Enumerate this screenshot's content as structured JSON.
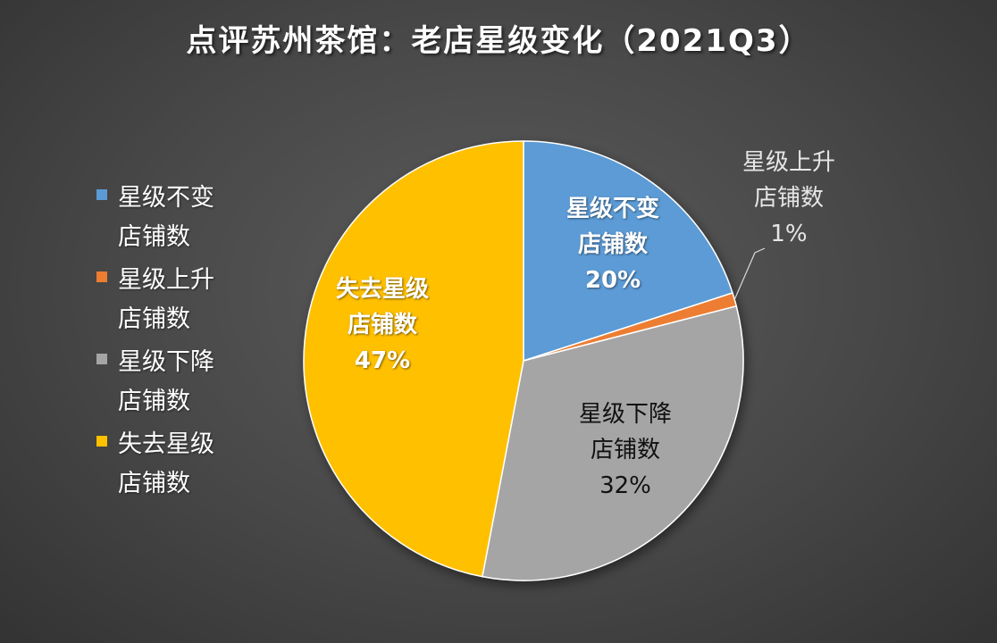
{
  "chart_data": {
    "type": "pie",
    "title": "点评苏州茶馆：老店星级变化（2021Q3）",
    "legend_position": "left",
    "slices": [
      {
        "label": "星级不变店铺数",
        "legend_lines": [
          "星级不变",
          "店铺数"
        ],
        "value": 20,
        "percent_label": "20%",
        "color": "#5b9bd5"
      },
      {
        "label": "星级上升店铺数",
        "legend_lines": [
          "星级上升",
          "店铺数"
        ],
        "value": 1,
        "percent_label": "1%",
        "color": "#ed7d31"
      },
      {
        "label": "星级下降店铺数",
        "legend_lines": [
          "星级下降",
          "店铺数"
        ],
        "value": 32,
        "percent_label": "32%",
        "color": "#a5a5a5"
      },
      {
        "label": "失去星级店铺数",
        "legend_lines": [
          "失去星级",
          "店铺数"
        ],
        "value": 47,
        "percent_label": "47%",
        "color": "#ffc000"
      }
    ]
  }
}
